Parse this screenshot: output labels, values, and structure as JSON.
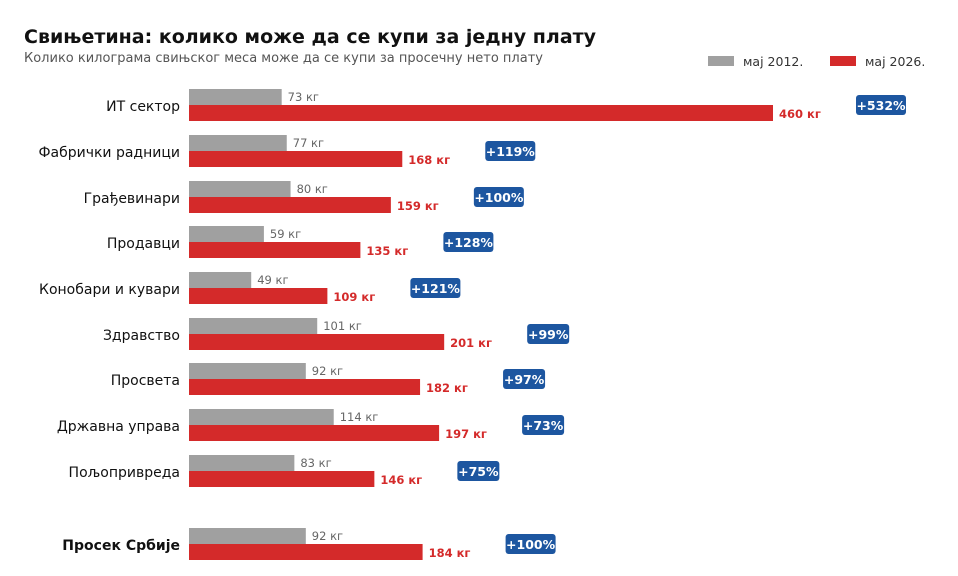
{
  "chart_data": {
    "type": "bar",
    "orientation": "horizontal",
    "title": "Свињетина: колико може да се купи за једну плату",
    "subtitle": "Колико килограма свињског меса може да се купи за просечну нето плату",
    "legend_position": "top-right",
    "grid": false,
    "unit_suffix": " кг",
    "categories": [
      "ИТ сектор",
      "Фабрички радници",
      "Грађевинари",
      "Продавци",
      "Конобари и кувари",
      "Здравство",
      "Просвета",
      "Државна управа",
      "Пољопривреда",
      "Просек Србије"
    ],
    "emphasized_category": "Просек Србије",
    "series": [
      {
        "name": "мај 2012.",
        "color": "#a0a0a0",
        "values": [
          73,
          77,
          80,
          59,
          49,
          101,
          92,
          114,
          83,
          92
        ]
      },
      {
        "name": "мај 2026.",
        "color": "#d42a2a",
        "values": [
          460,
          168,
          159,
          135,
          109,
          201,
          182,
          197,
          146,
          184
        ]
      }
    ],
    "change_labels": [
      "+532%",
      "+119%",
      "+100%",
      "+128%",
      "+121%",
      "+99%",
      "+97%",
      "+73%",
      "+75%",
      "+100%"
    ],
    "badge_color": "#1d56a0",
    "xlim": [
      0,
      480
    ]
  }
}
